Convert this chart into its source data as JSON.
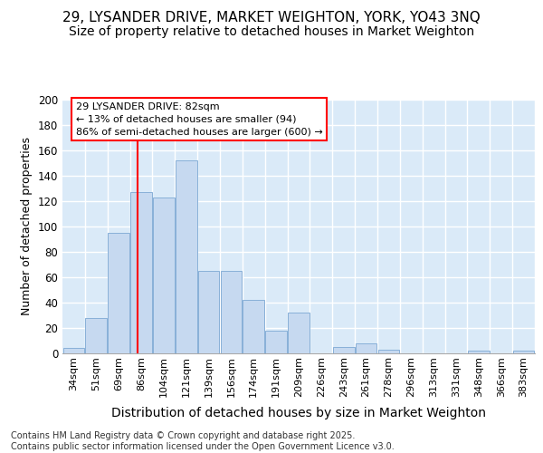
{
  "title_line1": "29, LYSANDER DRIVE, MARKET WEIGHTON, YORK, YO43 3NQ",
  "title_line2": "Size of property relative to detached houses in Market Weighton",
  "xlabel": "Distribution of detached houses by size in Market Weighton",
  "ylabel": "Number of detached properties",
  "categories": [
    "34sqm",
    "51sqm",
    "69sqm",
    "86sqm",
    "104sqm",
    "121sqm",
    "139sqm",
    "156sqm",
    "174sqm",
    "191sqm",
    "209sqm",
    "226sqm",
    "243sqm",
    "261sqm",
    "278sqm",
    "296sqm",
    "313sqm",
    "331sqm",
    "348sqm",
    "366sqm",
    "383sqm"
  ],
  "values": [
    4,
    28,
    95,
    127,
    123,
    152,
    65,
    65,
    42,
    18,
    32,
    0,
    5,
    8,
    3,
    0,
    0,
    0,
    2,
    0,
    2
  ],
  "bar_color": "#c6d9f0",
  "bar_edge_color": "#88b0d8",
  "annotation_text": "29 LYSANDER DRIVE: 82sqm\n← 13% of detached houses are smaller (94)\n86% of semi-detached houses are larger (600) →",
  "background_color": "#daeaf8",
  "grid_color": "#ffffff",
  "fig_bg": "#ffffff",
  "ylim": [
    0,
    200
  ],
  "yticks": [
    0,
    20,
    40,
    60,
    80,
    100,
    120,
    140,
    160,
    180,
    200
  ],
  "footer_text": "Contains HM Land Registry data © Crown copyright and database right 2025.\nContains public sector information licensed under the Open Government Licence v3.0.",
  "title_fontsize": 11,
  "subtitle_fontsize": 10,
  "ylabel_fontsize": 9,
  "xlabel_fontsize": 10,
  "tick_fontsize": 8,
  "footer_fontsize": 7,
  "ann_fontsize": 8
}
